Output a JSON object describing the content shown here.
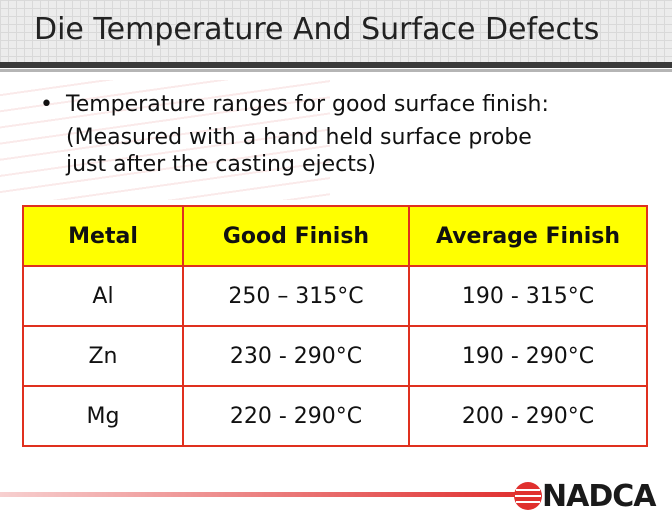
{
  "header": {
    "title": "Die Temperature And Surface Defects"
  },
  "bullet": {
    "marker": "•",
    "text": "Temperature ranges for good surface finish:"
  },
  "note": {
    "lines": [
      "(Measured with a hand held surface probe",
      "just after the casting ejects)"
    ]
  },
  "table": {
    "columns": [
      "Metal",
      "Good Finish",
      "Average Finish"
    ],
    "rows": [
      [
        "Al",
        "250 – 315°C",
        "190 - 315°C"
      ],
      [
        "Zn",
        "230 - 290°C",
        "190 - 290°C"
      ],
      [
        "Mg",
        "220 - 290°C",
        "200 - 290°C"
      ]
    ]
  },
  "footer": {
    "logo": "NADCA"
  }
}
